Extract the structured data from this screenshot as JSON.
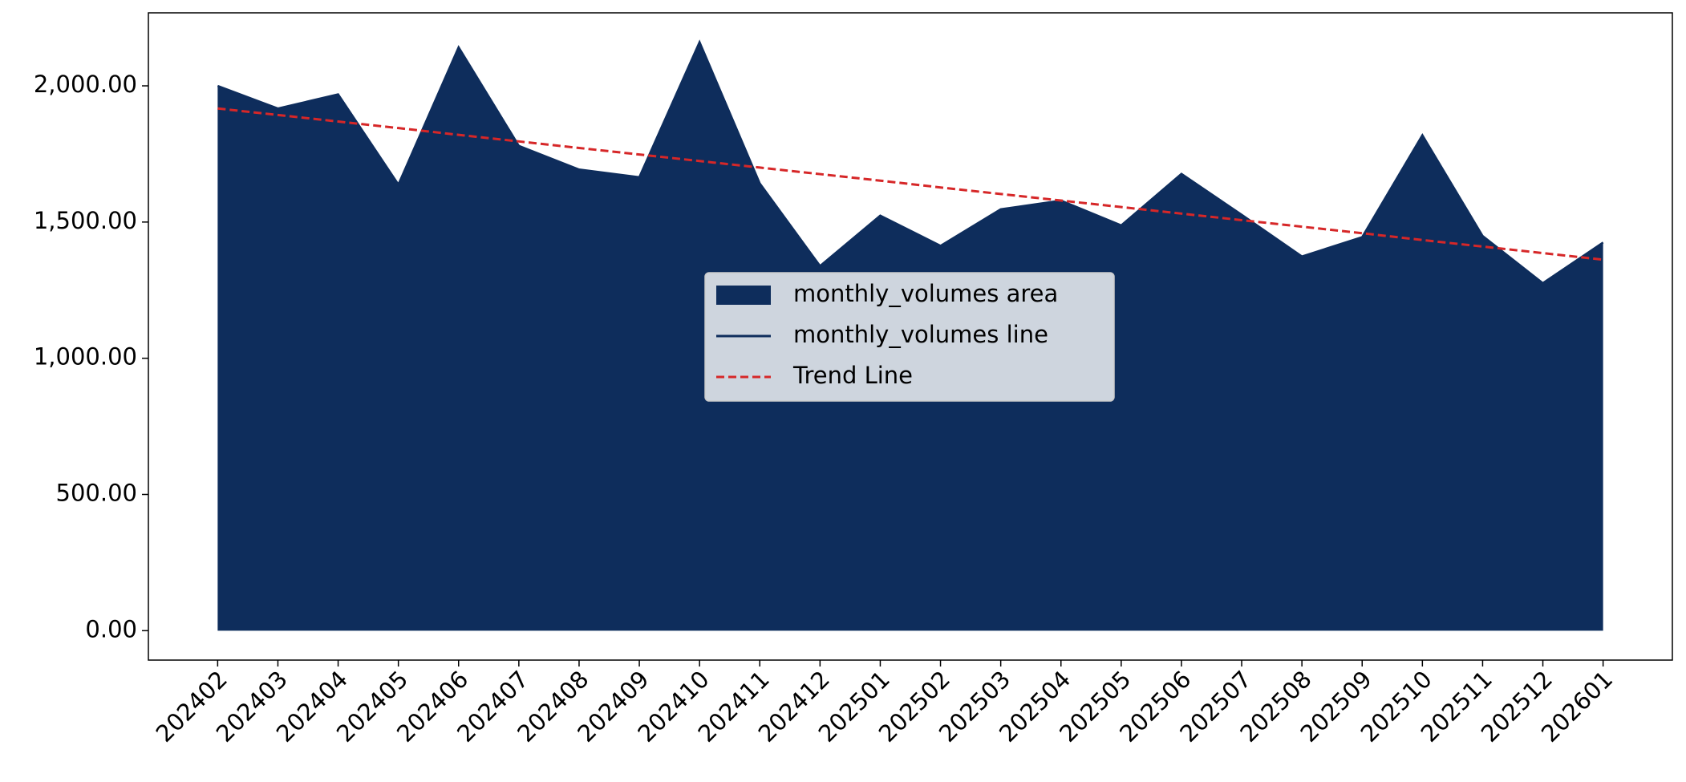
{
  "chart_data": {
    "type": "area",
    "categories": [
      "202402",
      "202403",
      "202404",
      "202405",
      "202406",
      "202407",
      "202408",
      "202409",
      "202410",
      "202411",
      "202412",
      "202501",
      "202502",
      "202503",
      "202504",
      "202505",
      "202506",
      "202507",
      "202508",
      "202509",
      "202510",
      "202511",
      "202512",
      "202601"
    ],
    "series": [
      {
        "name": "monthly_volumes area",
        "type": "area",
        "color": "#0e2d5c",
        "values": [
          2000,
          1917,
          1969,
          1638,
          2142,
          1780,
          1693,
          1665,
          2161,
          1642,
          1339,
          1524,
          1413,
          1547,
          1579,
          1488,
          1677,
          1527,
          1374,
          1445,
          1819,
          1449,
          1276,
          1425
        ]
      },
      {
        "name": "monthly_volumes line",
        "type": "line",
        "color": "#0e2d5c",
        "values": [
          2000,
          1917,
          1969,
          1638,
          2142,
          1780,
          1693,
          1665,
          2161,
          1642,
          1339,
          1524,
          1413,
          1547,
          1579,
          1488,
          1677,
          1527,
          1374,
          1445,
          1819,
          1449,
          1276,
          1425
        ]
      },
      {
        "name": "Trend Line",
        "type": "dashed",
        "color": "#d62728",
        "values": [
          1917,
          1893,
          1869,
          1845,
          1820,
          1796,
          1772,
          1748,
          1724,
          1700,
          1676,
          1652,
          1627,
          1603,
          1579,
          1555,
          1531,
          1507,
          1483,
          1459,
          1434,
          1410,
          1386,
          1362
        ]
      }
    ],
    "ylim": [
      -108,
      2268
    ],
    "yticks": [
      {
        "value": 0,
        "label": "0.00"
      },
      {
        "value": 500,
        "label": "500.00"
      },
      {
        "value": 1000,
        "label": "1,000.00"
      },
      {
        "value": 1500,
        "label": "1,500.00"
      },
      {
        "value": 2000,
        "label": "2,000.00"
      }
    ],
    "legend": "center"
  }
}
